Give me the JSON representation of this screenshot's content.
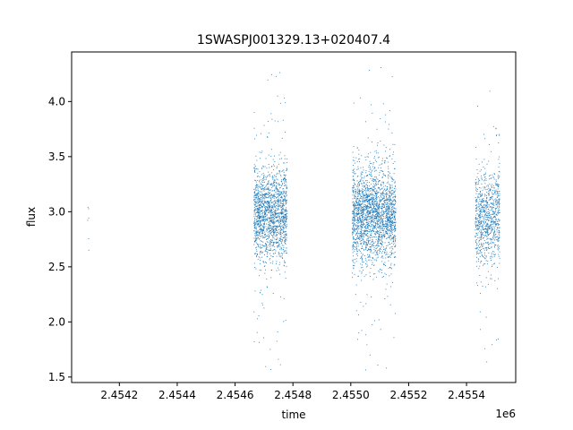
{
  "chart_data": {
    "type": "scatter",
    "title": "1SWASPJ001329.13+020407.4",
    "xlabel": "time",
    "ylabel": "flux",
    "x_offset_label": "1e6",
    "xlim": [
      2454035,
      2455570
    ],
    "ylim": [
      1.45,
      4.45
    ],
    "xticks": [
      2454200,
      2454400,
      2454600,
      2454800,
      2455000,
      2455200,
      2455400
    ],
    "xtick_labels": [
      "2.4542",
      "2.4544",
      "2.4546",
      "2.4548",
      "2.4550",
      "2.4552",
      "2.4554"
    ],
    "yticks": [
      1.5,
      2.0,
      2.5,
      3.0,
      3.5,
      4.0
    ],
    "ytick_labels": [
      "1.5",
      "2.0",
      "2.5",
      "3.0",
      "3.5",
      "4.0"
    ],
    "grid": false,
    "marker_color": "#1f77b4",
    "series": [
      {
        "clusters": [
          {
            "x_start": 2454090,
            "x_end": 2454095,
            "center": 2.95,
            "spread": 0.25,
            "count": 6
          },
          {
            "x_start": 2454665,
            "x_end": 2454780,
            "center": 2.98,
            "spread": 0.28,
            "count": 1700
          },
          {
            "x_start": 2455005,
            "x_end": 2455155,
            "center": 2.97,
            "spread": 0.28,
            "count": 2300
          },
          {
            "x_start": 2455430,
            "x_end": 2455515,
            "center": 2.95,
            "spread": 0.28,
            "count": 900
          }
        ]
      }
    ]
  }
}
